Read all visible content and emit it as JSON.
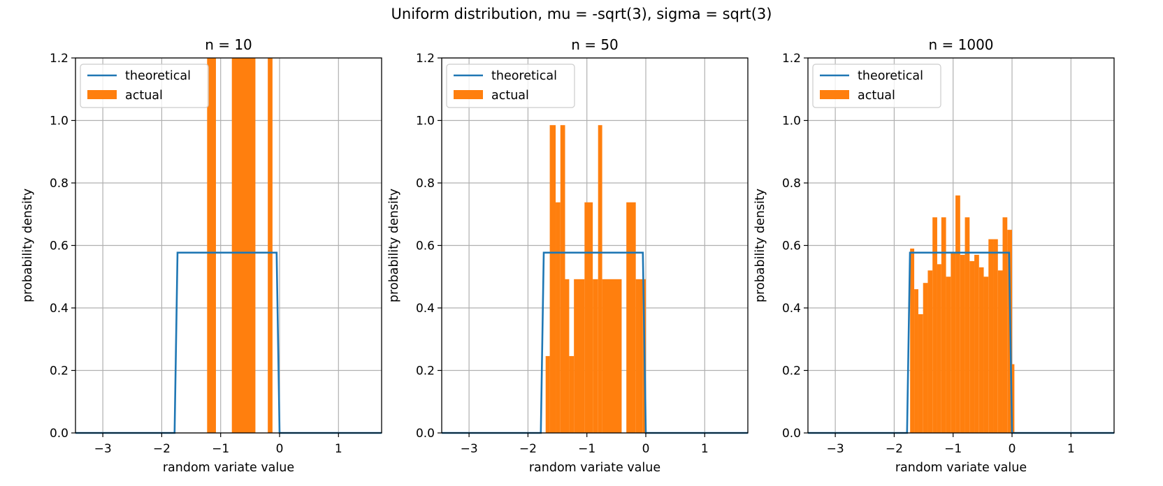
{
  "figure": {
    "suptitle": "Uniform distribution, mu = -sqrt(3), sigma = sqrt(3)"
  },
  "colors": {
    "theoretical": "#1f77b4",
    "actual": "#ff7f0e",
    "grid": "#b0b0b0",
    "legend_border": "#cccccc"
  },
  "chart_data": [
    {
      "type": "bar",
      "title": "n = 10",
      "xlabel": "random variate value",
      "ylabel": "probability density",
      "xlim": [
        -3.464,
        1.732
      ],
      "ylim": [
        0,
        1.2
      ],
      "xticks": [
        -3,
        -2,
        -1,
        0,
        1
      ],
      "xtick_labels": [
        "−3",
        "−2",
        "−1",
        "0",
        "1"
      ],
      "yticks": [
        0.0,
        0.2,
        0.4,
        0.6,
        0.8,
        1.0,
        1.2
      ],
      "ytick_labels": [
        "0.0",
        "0.2",
        "0.4",
        "0.6",
        "0.8",
        "1.0",
        "1.2"
      ],
      "grid": true,
      "legend": {
        "placement": "top-left",
        "entries": [
          "theoretical",
          "actual"
        ]
      },
      "series": [
        {
          "name": "theoretical",
          "kind": "line",
          "x": [
            -3.464,
            -1.782,
            -1.732,
            -0.05,
            0.0,
            1.732
          ],
          "y": [
            0,
            0,
            0.577,
            0.577,
            0,
            0
          ]
        },
        {
          "name": "actual",
          "kind": "histogram",
          "bins": [
            {
              "x0": -1.23,
              "x1": -1.08,
              "y": 5.0
            },
            {
              "x0": -0.81,
              "x1": -0.41,
              "y": 5.0
            },
            {
              "x0": -0.2,
              "x1": -0.12,
              "y": 5.0
            }
          ]
        }
      ]
    },
    {
      "type": "bar",
      "title": "n = 50",
      "xlabel": "random variate value",
      "ylabel": "probability density",
      "xlim": [
        -3.464,
        1.732
      ],
      "ylim": [
        0,
        1.2
      ],
      "xticks": [
        -3,
        -2,
        -1,
        0,
        1
      ],
      "xtick_labels": [
        "−3",
        "−2",
        "−1",
        "0",
        "1"
      ],
      "yticks": [
        0.0,
        0.2,
        0.4,
        0.6,
        0.8,
        1.0,
        1.2
      ],
      "ytick_labels": [
        "0.0",
        "0.2",
        "0.4",
        "0.6",
        "0.8",
        "1.0",
        "1.2"
      ],
      "grid": true,
      "legend": {
        "placement": "top-left",
        "entries": [
          "theoretical",
          "actual"
        ]
      },
      "series": [
        {
          "name": "theoretical",
          "kind": "line",
          "x": [
            -3.464,
            -1.782,
            -1.732,
            -0.05,
            0.0,
            1.732
          ],
          "y": [
            0,
            0,
            0.577,
            0.577,
            0,
            0
          ]
        },
        {
          "name": "actual",
          "kind": "histogram",
          "bins": [
            {
              "x0": -1.7,
              "x1": -1.63,
              "y": 0.246
            },
            {
              "x0": -1.63,
              "x1": -1.53,
              "y": 0.985
            },
            {
              "x0": -1.53,
              "x1": -1.45,
              "y": 0.738
            },
            {
              "x0": -1.45,
              "x1": -1.37,
              "y": 0.985
            },
            {
              "x0": -1.37,
              "x1": -1.3,
              "y": 0.492
            },
            {
              "x0": -1.3,
              "x1": -1.22,
              "y": 0.246
            },
            {
              "x0": -1.22,
              "x1": -1.04,
              "y": 0.492
            },
            {
              "x0": -1.04,
              "x1": -0.9,
              "y": 0.738
            },
            {
              "x0": -0.9,
              "x1": -0.81,
              "y": 0.492
            },
            {
              "x0": -0.81,
              "x1": -0.74,
              "y": 0.985
            },
            {
              "x0": -0.74,
              "x1": -0.41,
              "y": 0.492
            },
            {
              "x0": -0.33,
              "x1": -0.17,
              "y": 0.738
            },
            {
              "x0": -0.17,
              "x1": -0.05,
              "y": 0.492
            },
            {
              "x0": -0.05,
              "x1": 0.0,
              "y": 0.492
            }
          ]
        }
      ]
    },
    {
      "type": "bar",
      "title": "n = 1000",
      "xlabel": "random variate value",
      "ylabel": "probability density",
      "xlim": [
        -3.464,
        1.732
      ],
      "ylim": [
        0,
        1.2
      ],
      "xticks": [
        -3,
        -2,
        -1,
        0,
        1
      ],
      "xtick_labels": [
        "−3",
        "−2",
        "−1",
        "0",
        "1"
      ],
      "yticks": [
        0.0,
        0.2,
        0.4,
        0.6,
        0.8,
        1.0,
        1.2
      ],
      "ytick_labels": [
        "0.0",
        "0.2",
        "0.4",
        "0.6",
        "0.8",
        "1.0",
        "1.2"
      ],
      "grid": true,
      "legend": {
        "placement": "top-left",
        "entries": [
          "theoretical",
          "actual"
        ]
      },
      "series": [
        {
          "name": "theoretical",
          "kind": "line",
          "x": [
            -3.464,
            -1.782,
            -1.732,
            -0.05,
            0.0,
            1.732
          ],
          "y": [
            0,
            0,
            0.577,
            0.577,
            0,
            0
          ]
        },
        {
          "name": "actual",
          "kind": "histogram",
          "bins": [
            {
              "x0": -1.73,
              "x1": -1.66,
              "y": 0.59
            },
            {
              "x0": -1.66,
              "x1": -1.59,
              "y": 0.46
            },
            {
              "x0": -1.59,
              "x1": -1.51,
              "y": 0.38
            },
            {
              "x0": -1.51,
              "x1": -1.43,
              "y": 0.48
            },
            {
              "x0": -1.43,
              "x1": -1.35,
              "y": 0.52
            },
            {
              "x0": -1.35,
              "x1": -1.27,
              "y": 0.69
            },
            {
              "x0": -1.27,
              "x1": -1.2,
              "y": 0.54
            },
            {
              "x0": -1.2,
              "x1": -1.12,
              "y": 0.69
            },
            {
              "x0": -1.12,
              "x1": -1.04,
              "y": 0.5
            },
            {
              "x0": -1.04,
              "x1": -0.96,
              "y": 0.58
            },
            {
              "x0": -0.96,
              "x1": -0.88,
              "y": 0.76
            },
            {
              "x0": -0.88,
              "x1": -0.8,
              "y": 0.57
            },
            {
              "x0": -0.8,
              "x1": -0.72,
              "y": 0.69
            },
            {
              "x0": -0.72,
              "x1": -0.64,
              "y": 0.55
            },
            {
              "x0": -0.64,
              "x1": -0.56,
              "y": 0.57
            },
            {
              "x0": -0.56,
              "x1": -0.48,
              "y": 0.53
            },
            {
              "x0": -0.48,
              "x1": -0.4,
              "y": 0.5
            },
            {
              "x0": -0.4,
              "x1": -0.32,
              "y": 0.62
            },
            {
              "x0": -0.32,
              "x1": -0.24,
              "y": 0.62
            },
            {
              "x0": -0.24,
              "x1": -0.16,
              "y": 0.52
            },
            {
              "x0": -0.16,
              "x1": -0.08,
              "y": 0.69
            },
            {
              "x0": -0.08,
              "x1": 0.0,
              "y": 0.65
            },
            {
              "x0": 0.0,
              "x1": 0.04,
              "y": 0.22
            }
          ]
        }
      ]
    }
  ]
}
